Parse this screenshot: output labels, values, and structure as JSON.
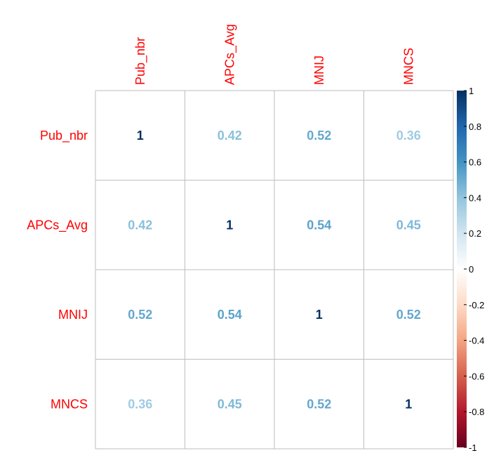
{
  "chart_data": {
    "type": "heatmap",
    "variables": [
      "Pub_nbr",
      "APCs_Avg",
      "MNIJ",
      "MNCS"
    ],
    "matrix": [
      [
        1,
        0.42,
        0.52,
        0.36
      ],
      [
        0.42,
        1,
        0.54,
        0.45
      ],
      [
        0.52,
        0.54,
        1,
        0.52
      ],
      [
        0.36,
        0.45,
        0.52,
        1
      ]
    ],
    "cell_labels": [
      [
        "1",
        "0.42",
        "0.52",
        "0.36"
      ],
      [
        "0.42",
        "1",
        "0.54",
        "0.45"
      ],
      [
        "0.52",
        "0.54",
        "1",
        "0.52"
      ],
      [
        "0.36",
        "0.45",
        "0.52",
        "1"
      ]
    ],
    "colorbar": {
      "range": [
        -1,
        1
      ],
      "ticks": [
        1,
        0.8,
        0.6,
        0.4,
        0.2,
        0,
        -0.2,
        -0.4,
        -0.6,
        -0.8,
        -1
      ],
      "tick_labels": [
        "1",
        "0.8",
        "0.6",
        "0.4",
        "0.2",
        "0",
        "-0.2",
        "-0.4",
        "-0.6",
        "-0.8",
        "-1"
      ],
      "palette": [
        "#67001F",
        "#B2182B",
        "#D6604D",
        "#F4A582",
        "#FDDBC7",
        "#FFFFFF",
        "#D1E5F0",
        "#92C5DE",
        "#4393C3",
        "#2166AC",
        "#053061"
      ]
    },
    "label_color": "#FF0000",
    "grid_color": "#BEBEBE",
    "grid": true,
    "legend_placement": "right"
  }
}
